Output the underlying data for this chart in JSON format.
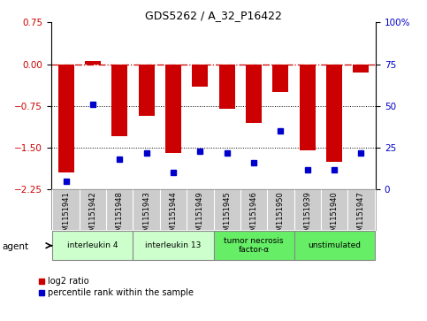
{
  "title": "GDS5262 / A_32_P16422",
  "samples": [
    "GSM1151941",
    "GSM1151942",
    "GSM1151948",
    "GSM1151943",
    "GSM1151944",
    "GSM1151949",
    "GSM1151945",
    "GSM1151946",
    "GSM1151950",
    "GSM1151939",
    "GSM1151940",
    "GSM1151947"
  ],
  "log2_ratio": [
    -1.95,
    0.05,
    -1.3,
    -0.93,
    -1.6,
    -0.4,
    -0.8,
    -1.05,
    -0.5,
    -1.55,
    -1.75,
    -0.15
  ],
  "percentile": [
    5,
    51,
    18,
    22,
    10,
    23,
    22,
    16,
    35,
    12,
    12,
    22
  ],
  "ylim_left": [
    -2.25,
    0.75
  ],
  "ylim_right": [
    0,
    100
  ],
  "yticks_left": [
    -2.25,
    -1.5,
    -0.75,
    0,
    0.75
  ],
  "yticks_right": [
    0,
    25,
    50,
    75,
    100
  ],
  "hline_red": 0,
  "hline_dotted1": -0.75,
  "hline_dotted2": -1.5,
  "bar_color": "#cc0000",
  "dot_color": "#0000cc",
  "agent_groups": [
    {
      "label": "interleukin 4",
      "start": 0,
      "end": 2,
      "color": "#ccffcc"
    },
    {
      "label": "interleukin 13",
      "start": 3,
      "end": 5,
      "color": "#ccffcc"
    },
    {
      "label": "tumor necrosis\nfactor-α",
      "start": 6,
      "end": 8,
      "color": "#66ee66"
    },
    {
      "label": "unstimulated",
      "start": 9,
      "end": 11,
      "color": "#66ee66"
    }
  ],
  "legend_items": [
    {
      "label": "log2 ratio",
      "color": "#cc0000"
    },
    {
      "label": "percentile rank within the sample",
      "color": "#0000cc"
    }
  ],
  "bar_width": 0.6,
  "xlim": [
    -0.55,
    11.55
  ]
}
